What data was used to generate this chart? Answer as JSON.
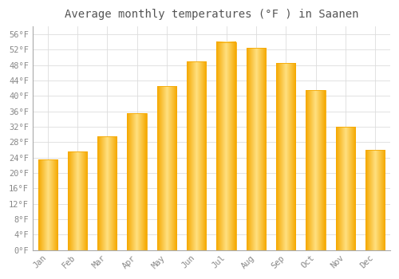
{
  "title": "Average monthly temperatures (°F ) in Saanen",
  "months": [
    "Jan",
    "Feb",
    "Mar",
    "Apr",
    "May",
    "Jun",
    "Jul",
    "Aug",
    "Sep",
    "Oct",
    "Nov",
    "Dec"
  ],
  "values": [
    23.5,
    25.5,
    29.5,
    35.5,
    42.5,
    49.0,
    54.0,
    52.5,
    48.5,
    41.5,
    32.0,
    26.0
  ],
  "bar_color_center": "#FFE080",
  "bar_color_edge": "#F5A800",
  "background_color": "#FFFFFF",
  "grid_color": "#DDDDDD",
  "text_color": "#888888",
  "title_color": "#555555",
  "ylim": [
    0,
    58
  ],
  "yticks": [
    0,
    4,
    8,
    12,
    16,
    20,
    24,
    28,
    32,
    36,
    40,
    44,
    48,
    52,
    56
  ],
  "ytick_labels": [
    "0°F",
    "4°F",
    "8°F",
    "12°F",
    "16°F",
    "20°F",
    "24°F",
    "28°F",
    "32°F",
    "36°F",
    "40°F",
    "44°F",
    "48°F",
    "52°F",
    "56°F"
  ],
  "title_fontsize": 10,
  "tick_fontsize": 7.5,
  "bar_width": 0.65
}
